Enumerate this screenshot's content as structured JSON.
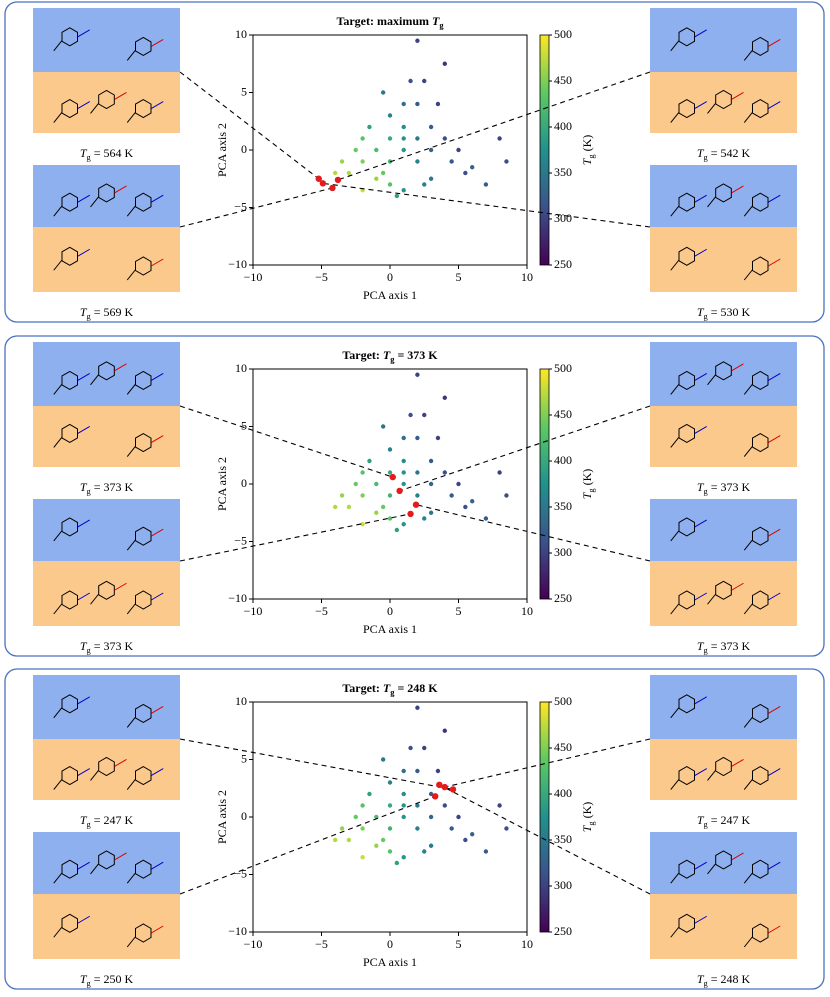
{
  "chart_data": [
    {
      "type": "scatter",
      "panel": "a",
      "title": [
        {
          "text": "Target: maximum "
        },
        {
          "text": "T",
          "style": "italic"
        },
        {
          "text": "g",
          "style": "sub"
        }
      ],
      "xlabel": "PCA axis 1",
      "ylabel": "PCA axis 2",
      "xlim": [
        -10,
        10
      ],
      "ylim": [
        -10,
        10
      ],
      "xticks": [
        {
          "value": -10,
          "label": "−10"
        },
        {
          "value": -5,
          "label": "−5"
        },
        0,
        5,
        10
      ],
      "yticks": [
        {
          "value": -10,
          "label": "−10"
        },
        {
          "value": -5,
          "label": "−5"
        },
        0,
        5,
        10
      ],
      "colorbar": {
        "label": [
          {
            "text": "T",
            "style": "italic"
          },
          {
            "text": "g",
            "style": "sub"
          },
          {
            "text": " (K)"
          }
        ],
        "lim": [
          250,
          500
        ],
        "ticks": [
          250,
          300,
          350,
          400,
          450,
          500
        ],
        "colormap": "viridis"
      },
      "points": {
        "x": [
          -3,
          -2,
          -2.5,
          -1,
          0,
          -1,
          0,
          1,
          0,
          -1.5,
          1,
          2,
          2,
          3,
          3,
          1,
          2,
          0,
          -0.5,
          1.5,
          2.5,
          3.5,
          4,
          4.5,
          3,
          1,
          -3.5,
          -4,
          -2,
          0.5,
          5,
          5.5,
          6,
          7,
          8,
          8.5,
          4,
          2,
          -2,
          1,
          -0.5,
          2.5
        ],
        "y": [
          -2,
          -1,
          0,
          -2.5,
          -3,
          0,
          1,
          0,
          -1,
          2,
          2,
          1,
          -1,
          0,
          2,
          4,
          4,
          3,
          5,
          6,
          6,
          4,
          1,
          -1,
          -2.5,
          -3.5,
          -1,
          -2,
          -3.5,
          -4,
          0,
          -2,
          -1.5,
          -3,
          1,
          -1,
          7.5,
          9.5,
          1,
          1,
          -2,
          -3
        ],
        "c": [
          470,
          450,
          440,
          460,
          430,
          420,
          400,
          380,
          410,
          390,
          370,
          350,
          360,
          330,
          320,
          340,
          320,
          360,
          350,
          310,
          300,
          300,
          310,
          320,
          350,
          380,
          460,
          470,
          480,
          390,
          300,
          310,
          330,
          320,
          300,
          310,
          290,
          300,
          430,
          380,
          440,
          360
        ]
      },
      "highlights": {
        "color": "#e41a1c",
        "x": [
          -5.2,
          -4.2,
          -3.8,
          -4.9
        ],
        "y": [
          -2.5,
          -3.3,
          -2.6,
          -2.9
        ]
      },
      "molecules": [
        {
          "side": "left",
          "row": 0,
          "label": [
            {
              "text": "T",
              "style": "italic"
            },
            {
              "text": "g",
              "style": "sub"
            },
            {
              "text": " = 564 K"
            }
          ]
        },
        {
          "side": "left",
          "row": 1,
          "label": [
            {
              "text": "T",
              "style": "italic"
            },
            {
              "text": "g",
              "style": "sub"
            },
            {
              "text": " = 569 K"
            }
          ]
        },
        {
          "side": "right",
          "row": 0,
          "label": [
            {
              "text": "T",
              "style": "italic"
            },
            {
              "text": "g",
              "style": "sub"
            },
            {
              "text": " = 542 K"
            }
          ]
        },
        {
          "side": "right",
          "row": 1,
          "label": [
            {
              "text": "T",
              "style": "italic"
            },
            {
              "text": "g",
              "style": "sub"
            },
            {
              "text": " = 530 K"
            }
          ]
        }
      ]
    },
    {
      "type": "scatter",
      "panel": "b",
      "title": [
        {
          "text": "Target: "
        },
        {
          "text": "T",
          "style": "italic"
        },
        {
          "text": "g",
          "style": "sub"
        },
        {
          "text": " = 373 K"
        }
      ],
      "xlabel": "PCA axis 1",
      "ylabel": "PCA axis 2",
      "xlim": [
        -10,
        10
      ],
      "ylim": [
        -10,
        10
      ],
      "xticks": [
        {
          "value": -10,
          "label": "−10"
        },
        {
          "value": -5,
          "label": "−5"
        },
        0,
        5,
        10
      ],
      "yticks": [
        {
          "value": -10,
          "label": "−10"
        },
        {
          "value": -5,
          "label": "−5"
        },
        0,
        5,
        10
      ],
      "colorbar": {
        "label": [
          {
            "text": "T",
            "style": "italic"
          },
          {
            "text": "g",
            "style": "sub"
          },
          {
            "text": " (K)"
          }
        ],
        "lim": [
          250,
          500
        ],
        "ticks": [
          250,
          300,
          350,
          400,
          450,
          500
        ],
        "colormap": "viridis"
      },
      "points": {
        "x": [
          -3,
          -2,
          -2.5,
          -1,
          0,
          -1,
          0,
          1,
          0,
          -1.5,
          1,
          2,
          2,
          3,
          3,
          1,
          2,
          0,
          -0.5,
          1.5,
          2.5,
          3.5,
          4,
          4.5,
          3,
          1,
          -3.5,
          -4,
          -2,
          0.5,
          5,
          5.5,
          6,
          7,
          8,
          8.5,
          4,
          2,
          -2,
          1,
          -0.5,
          2.5
        ],
        "y": [
          -2,
          -1,
          0,
          -2.5,
          -3,
          0,
          1,
          0,
          -1,
          2,
          2,
          1,
          -1,
          0,
          2,
          4,
          4,
          3,
          5,
          6,
          6,
          4,
          1,
          -1,
          -2.5,
          -3.5,
          -1,
          -2,
          -3.5,
          -4,
          0,
          -2,
          -1.5,
          -3,
          1,
          -1,
          7.5,
          9.5,
          1,
          1,
          -2,
          -3
        ],
        "c": [
          470,
          450,
          440,
          460,
          430,
          420,
          400,
          380,
          410,
          390,
          370,
          350,
          360,
          330,
          320,
          340,
          320,
          360,
          350,
          310,
          300,
          300,
          310,
          320,
          350,
          380,
          460,
          470,
          480,
          390,
          300,
          310,
          330,
          320,
          300,
          310,
          290,
          300,
          430,
          380,
          440,
          360
        ]
      },
      "highlights": {
        "color": "#e41a1c",
        "x": [
          0.2,
          1.5,
          0.7,
          1.9
        ],
        "y": [
          0.6,
          -2.6,
          -0.6,
          -1.8
        ]
      },
      "molecules": [
        {
          "side": "left",
          "row": 0,
          "label": [
            {
              "text": "T",
              "style": "italic"
            },
            {
              "text": "g",
              "style": "sub"
            },
            {
              "text": " = 373 K"
            }
          ]
        },
        {
          "side": "left",
          "row": 1,
          "label": [
            {
              "text": "T",
              "style": "italic"
            },
            {
              "text": "g",
              "style": "sub"
            },
            {
              "text": " = 373 K"
            }
          ]
        },
        {
          "side": "right",
          "row": 0,
          "label": [
            {
              "text": "T",
              "style": "italic"
            },
            {
              "text": "g",
              "style": "sub"
            },
            {
              "text": " = 373 K"
            }
          ]
        },
        {
          "side": "right",
          "row": 1,
          "label": [
            {
              "text": "T",
              "style": "italic"
            },
            {
              "text": "g",
              "style": "sub"
            },
            {
              "text": " = 373 K"
            }
          ]
        }
      ]
    },
    {
      "type": "scatter",
      "panel": "c",
      "title": [
        {
          "text": "Target: "
        },
        {
          "text": "T",
          "style": "italic"
        },
        {
          "text": "g",
          "style": "sub"
        },
        {
          "text": " = 248 K"
        }
      ],
      "xlabel": "PCA axis 1",
      "ylabel": "PCA axis 2",
      "xlim": [
        -10,
        10
      ],
      "ylim": [
        -10,
        10
      ],
      "xticks": [
        {
          "value": -10,
          "label": "−10"
        },
        {
          "value": -5,
          "label": "−5"
        },
        0,
        5,
        10
      ],
      "yticks": [
        {
          "value": -10,
          "label": "−10"
        },
        {
          "value": -5,
          "label": "−5"
        },
        0,
        5,
        10
      ],
      "colorbar": {
        "label": [
          {
            "text": "T",
            "style": "italic"
          },
          {
            "text": "g",
            "style": "sub"
          },
          {
            "text": " (K)"
          }
        ],
        "lim": [
          250,
          500
        ],
        "ticks": [
          250,
          300,
          350,
          400,
          450,
          500
        ],
        "colormap": "viridis"
      },
      "points": {
        "x": [
          -3,
          -2,
          -2.5,
          -1,
          0,
          -1,
          0,
          1,
          0,
          -1.5,
          1,
          2,
          2,
          3,
          3,
          1,
          2,
          0,
          -0.5,
          1.5,
          2.5,
          3.5,
          4,
          4.5,
          3,
          1,
          -3.5,
          -4,
          -2,
          0.5,
          5,
          5.5,
          6,
          7,
          8,
          8.5,
          4,
          2,
          -2,
          1,
          -0.5,
          2.5
        ],
        "y": [
          -2,
          -1,
          0,
          -2.5,
          -3,
          0,
          1,
          0,
          -1,
          2,
          2,
          1,
          -1,
          0,
          2,
          4,
          4,
          3,
          5,
          6,
          6,
          4,
          1,
          -1,
          -2.5,
          -3.5,
          -1,
          -2,
          -3.5,
          -4,
          0,
          -2,
          -1.5,
          -3,
          1,
          -1,
          7.5,
          9.5,
          1,
          1,
          -2,
          -3
        ],
        "c": [
          470,
          450,
          440,
          460,
          430,
          420,
          400,
          380,
          410,
          390,
          370,
          350,
          360,
          330,
          320,
          340,
          320,
          360,
          350,
          310,
          300,
          300,
          310,
          320,
          350,
          380,
          460,
          470,
          480,
          390,
          300,
          310,
          330,
          320,
          300,
          310,
          290,
          300,
          430,
          380,
          440,
          360
        ]
      },
      "highlights": {
        "color": "#e41a1c",
        "x": [
          4.6,
          3.3,
          4.0,
          3.6
        ],
        "y": [
          2.4,
          1.8,
          2.6,
          2.8
        ]
      },
      "molecules": [
        {
          "side": "left",
          "row": 0,
          "label": [
            {
              "text": "T",
              "style": "italic"
            },
            {
              "text": "g",
              "style": "sub"
            },
            {
              "text": " = 247 K"
            }
          ]
        },
        {
          "side": "left",
          "row": 1,
          "label": [
            {
              "text": "T",
              "style": "italic"
            },
            {
              "text": "g",
              "style": "sub"
            },
            {
              "text": " = 250 K"
            }
          ]
        },
        {
          "side": "right",
          "row": 0,
          "label": [
            {
              "text": "T",
              "style": "italic"
            },
            {
              "text": "g",
              "style": "sub"
            },
            {
              "text": " = 247 K"
            }
          ]
        },
        {
          "side": "right",
          "row": 1,
          "label": [
            {
              "text": "T",
              "style": "italic"
            },
            {
              "text": "g",
              "style": "sub"
            },
            {
              "text": " = 248 K"
            }
          ]
        }
      ]
    }
  ]
}
